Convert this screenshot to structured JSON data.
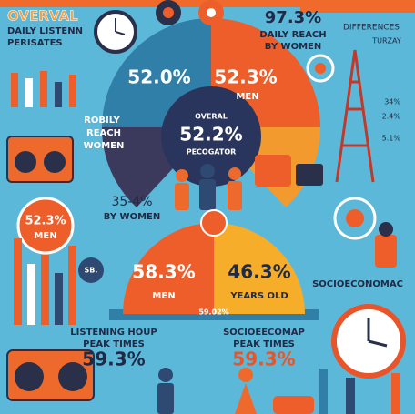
{
  "header": {
    "title": "OVERVAL",
    "line1": "DAILY LISTENN",
    "line2": "PERISATES"
  },
  "top_pie": {
    "left_value": "52.0%",
    "right_value": "52.3%",
    "right_label": "MEN",
    "wedge_lines": [
      "ROBILY",
      "REACH",
      "WOMEN"
    ],
    "center_title": "OVERAL",
    "center_value": "52.2%",
    "center_label": "PECOGATOR"
  },
  "top_right": {
    "value": "97.3%",
    "line1": "DAILY REACH",
    "line2": "BY WOMEN",
    "title": "DIFFERENCES",
    "subtitle": "TURZAY",
    "small_values": [
      "34%",
      "2.4%",
      "5.1%"
    ]
  },
  "middle_left": {
    "value": "35-4%",
    "label": "BY WOMEN"
  },
  "badge": {
    "value": "52.3%",
    "label": "MEN"
  },
  "small_tag": "SB.",
  "bottom_pie": {
    "left_value": "58.3%",
    "left_label": "MEN",
    "right_value": "46.3%",
    "right_label": "YEARS OLD",
    "base_value": "59.02%"
  },
  "socio_title": "SOCIOECONOMAC",
  "peak_left": {
    "title": "LISTENING HOUP",
    "subtitle": "PEAK TIMES",
    "value": "59.3%"
  },
  "peak_right": {
    "title": "SOCIOEECOMAP",
    "subtitle": "PEAK TIMES",
    "value": "59.3%"
  }
}
